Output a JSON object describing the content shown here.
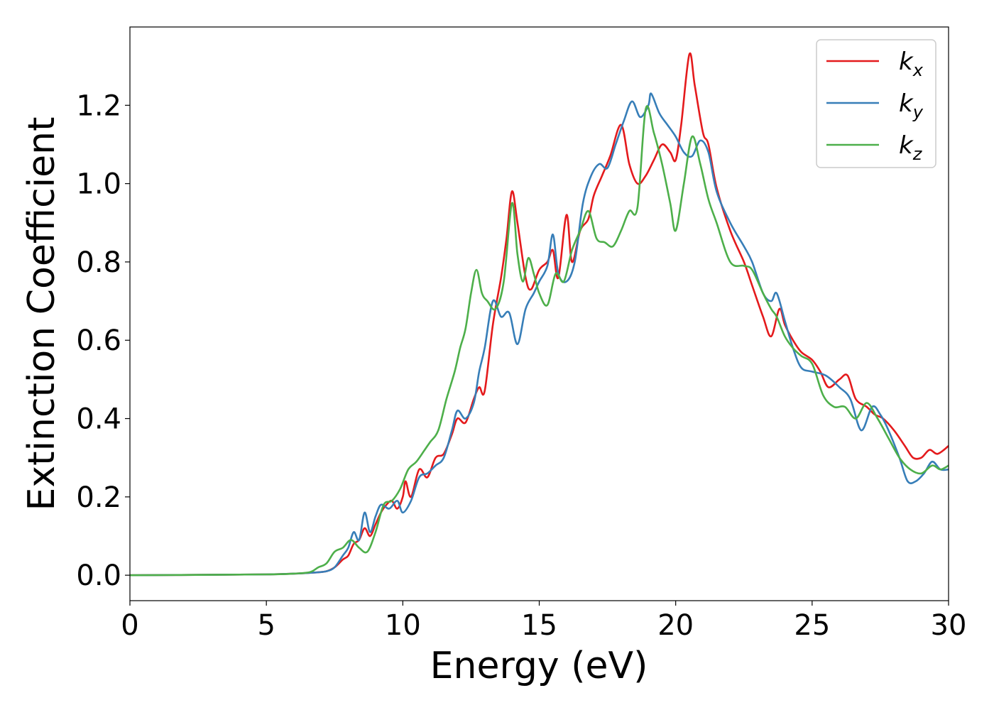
{
  "chart_data": {
    "type": "line",
    "title": "",
    "xlabel": "Energy (eV)",
    "ylabel": "Extinction Coefficient",
    "xlim": [
      0,
      30
    ],
    "ylim": [
      -0.065,
      1.4
    ],
    "xticks": [
      "0",
      "5",
      "10",
      "15",
      "20",
      "25",
      "30"
    ],
    "yticks": [
      "0.0",
      "0.2",
      "0.4",
      "0.6",
      "0.8",
      "1.0",
      "1.2"
    ],
    "grid": false,
    "legend_position": "top-right",
    "series": [
      {
        "name": "k",
        "name_sub": "x",
        "color": "#e41a1c",
        "points": [
          [
            0,
            0
          ],
          [
            3,
            0.001
          ],
          [
            5,
            0.002
          ],
          [
            6,
            0.004
          ],
          [
            6.8,
            0.007
          ],
          [
            7.2,
            0.01
          ],
          [
            7.5,
            0.02
          ],
          [
            7.8,
            0.04
          ],
          [
            8,
            0.05
          ],
          [
            8.2,
            0.08
          ],
          [
            8.4,
            0.09
          ],
          [
            8.6,
            0.12
          ],
          [
            8.8,
            0.1
          ],
          [
            9,
            0.13
          ],
          [
            9.2,
            0.16
          ],
          [
            9.4,
            0.18
          ],
          [
            9.6,
            0.19
          ],
          [
            9.8,
            0.17
          ],
          [
            10,
            0.2
          ],
          [
            10.1,
            0.24
          ],
          [
            10.3,
            0.2
          ],
          [
            10.6,
            0.27
          ],
          [
            10.9,
            0.25
          ],
          [
            11.2,
            0.3
          ],
          [
            11.5,
            0.31
          ],
          [
            11.8,
            0.36
          ],
          [
            12,
            0.4
          ],
          [
            12.3,
            0.39
          ],
          [
            12.6,
            0.45
          ],
          [
            12.8,
            0.48
          ],
          [
            13,
            0.47
          ],
          [
            13.3,
            0.64
          ],
          [
            13.6,
            0.76
          ],
          [
            13.8,
            0.86
          ],
          [
            14,
            0.98
          ],
          [
            14.2,
            0.9
          ],
          [
            14.5,
            0.76
          ],
          [
            14.7,
            0.73
          ],
          [
            15,
            0.78
          ],
          [
            15.3,
            0.8
          ],
          [
            15.5,
            0.83
          ],
          [
            15.7,
            0.76
          ],
          [
            16,
            0.92
          ],
          [
            16.2,
            0.8
          ],
          [
            16.5,
            0.88
          ],
          [
            16.8,
            0.91
          ],
          [
            17,
            0.97
          ],
          [
            17.3,
            1.02
          ],
          [
            17.6,
            1.07
          ],
          [
            18,
            1.15
          ],
          [
            18.3,
            1.05
          ],
          [
            18.6,
            1.0
          ],
          [
            18.9,
            1.02
          ],
          [
            19.2,
            1.06
          ],
          [
            19.5,
            1.1
          ],
          [
            19.8,
            1.08
          ],
          [
            20,
            1.06
          ],
          [
            20.2,
            1.15
          ],
          [
            20.5,
            1.33
          ],
          [
            20.7,
            1.25
          ],
          [
            21,
            1.13
          ],
          [
            21.2,
            1.1
          ],
          [
            21.5,
            0.99
          ],
          [
            22,
            0.88
          ],
          [
            22.5,
            0.8
          ],
          [
            22.8,
            0.74
          ],
          [
            23.2,
            0.66
          ],
          [
            23.5,
            0.61
          ],
          [
            23.8,
            0.68
          ],
          [
            24,
            0.64
          ],
          [
            24.3,
            0.6
          ],
          [
            24.6,
            0.57
          ],
          [
            25,
            0.55
          ],
          [
            25.3,
            0.52
          ],
          [
            25.6,
            0.48
          ],
          [
            26,
            0.5
          ],
          [
            26.3,
            0.51
          ],
          [
            26.6,
            0.45
          ],
          [
            27,
            0.43
          ],
          [
            27.3,
            0.41
          ],
          [
            27.6,
            0.4
          ],
          [
            28,
            0.37
          ],
          [
            28.4,
            0.33
          ],
          [
            28.7,
            0.3
          ],
          [
            29,
            0.3
          ],
          [
            29.3,
            0.32
          ],
          [
            29.6,
            0.31
          ],
          [
            30,
            0.33
          ]
        ]
      },
      {
        "name": "k",
        "name_sub": "y",
        "color": "#377eb8",
        "points": [
          [
            0,
            0
          ],
          [
            3,
            0.001
          ],
          [
            5,
            0.002
          ],
          [
            6,
            0.004
          ],
          [
            6.8,
            0.007
          ],
          [
            7.2,
            0.01
          ],
          [
            7.5,
            0.02
          ],
          [
            7.8,
            0.05
          ],
          [
            8,
            0.07
          ],
          [
            8.2,
            0.11
          ],
          [
            8.4,
            0.09
          ],
          [
            8.6,
            0.16
          ],
          [
            8.8,
            0.11
          ],
          [
            9,
            0.15
          ],
          [
            9.2,
            0.18
          ],
          [
            9.5,
            0.17
          ],
          [
            9.8,
            0.19
          ],
          [
            10,
            0.16
          ],
          [
            10.3,
            0.19
          ],
          [
            10.6,
            0.25
          ],
          [
            10.9,
            0.26
          ],
          [
            11.2,
            0.28
          ],
          [
            11.5,
            0.3
          ],
          [
            11.8,
            0.37
          ],
          [
            12,
            0.42
          ],
          [
            12.3,
            0.4
          ],
          [
            12.6,
            0.44
          ],
          [
            12.8,
            0.52
          ],
          [
            13,
            0.58
          ],
          [
            13.3,
            0.7
          ],
          [
            13.6,
            0.66
          ],
          [
            13.9,
            0.67
          ],
          [
            14.2,
            0.59
          ],
          [
            14.5,
            0.68
          ],
          [
            14.8,
            0.72
          ],
          [
            15,
            0.75
          ],
          [
            15.3,
            0.79
          ],
          [
            15.5,
            0.87
          ],
          [
            15.7,
            0.77
          ],
          [
            16,
            0.75
          ],
          [
            16.3,
            0.8
          ],
          [
            16.6,
            0.95
          ],
          [
            16.9,
            1.02
          ],
          [
            17.2,
            1.05
          ],
          [
            17.5,
            1.04
          ],
          [
            17.8,
            1.1
          ],
          [
            18.1,
            1.16
          ],
          [
            18.4,
            1.21
          ],
          [
            18.7,
            1.17
          ],
          [
            19,
            1.2
          ],
          [
            19.1,
            1.23
          ],
          [
            19.4,
            1.18
          ],
          [
            19.7,
            1.15
          ],
          [
            20,
            1.12
          ],
          [
            20.3,
            1.08
          ],
          [
            20.6,
            1.07
          ],
          [
            20.9,
            1.11
          ],
          [
            21.2,
            1.08
          ],
          [
            21.5,
            0.98
          ],
          [
            22,
            0.9
          ],
          [
            22.5,
            0.84
          ],
          [
            22.8,
            0.8
          ],
          [
            23.2,
            0.72
          ],
          [
            23.5,
            0.7
          ],
          [
            23.7,
            0.72
          ],
          [
            24,
            0.65
          ],
          [
            24.3,
            0.58
          ],
          [
            24.6,
            0.53
          ],
          [
            25,
            0.52
          ],
          [
            25.5,
            0.51
          ],
          [
            26,
            0.48
          ],
          [
            26.4,
            0.45
          ],
          [
            26.8,
            0.37
          ],
          [
            27.2,
            0.43
          ],
          [
            27.5,
            0.41
          ],
          [
            27.8,
            0.37
          ],
          [
            28.2,
            0.3
          ],
          [
            28.5,
            0.24
          ],
          [
            28.8,
            0.24
          ],
          [
            29.1,
            0.26
          ],
          [
            29.4,
            0.29
          ],
          [
            29.7,
            0.27
          ],
          [
            30,
            0.27
          ]
        ]
      },
      {
        "name": "k",
        "name_sub": "z",
        "color": "#4daf4a",
        "points": [
          [
            0,
            0
          ],
          [
            3,
            0.001
          ],
          [
            5,
            0.002
          ],
          [
            6,
            0.004
          ],
          [
            6.6,
            0.008
          ],
          [
            6.9,
            0.02
          ],
          [
            7.2,
            0.03
          ],
          [
            7.5,
            0.06
          ],
          [
            7.8,
            0.07
          ],
          [
            8.1,
            0.09
          ],
          [
            8.4,
            0.07
          ],
          [
            8.7,
            0.06
          ],
          [
            9,
            0.11
          ],
          [
            9.3,
            0.18
          ],
          [
            9.6,
            0.19
          ],
          [
            9.9,
            0.22
          ],
          [
            10.2,
            0.27
          ],
          [
            10.5,
            0.29
          ],
          [
            10.8,
            0.32
          ],
          [
            11,
            0.34
          ],
          [
            11.3,
            0.37
          ],
          [
            11.6,
            0.45
          ],
          [
            11.9,
            0.52
          ],
          [
            12.1,
            0.58
          ],
          [
            12.3,
            0.63
          ],
          [
            12.5,
            0.72
          ],
          [
            12.7,
            0.78
          ],
          [
            12.9,
            0.72
          ],
          [
            13.1,
            0.7
          ],
          [
            13.4,
            0.68
          ],
          [
            13.7,
            0.75
          ],
          [
            14,
            0.95
          ],
          [
            14.2,
            0.82
          ],
          [
            14.4,
            0.75
          ],
          [
            14.6,
            0.81
          ],
          [
            14.8,
            0.77
          ],
          [
            15,
            0.72
          ],
          [
            15.3,
            0.69
          ],
          [
            15.6,
            0.77
          ],
          [
            15.9,
            0.75
          ],
          [
            16.2,
            0.83
          ],
          [
            16.5,
            0.88
          ],
          [
            16.8,
            0.93
          ],
          [
            17.1,
            0.86
          ],
          [
            17.4,
            0.85
          ],
          [
            17.7,
            0.84
          ],
          [
            18,
            0.88
          ],
          [
            18.3,
            0.93
          ],
          [
            18.6,
            0.94
          ],
          [
            18.9,
            1.19
          ],
          [
            19.2,
            1.13
          ],
          [
            19.5,
            1.05
          ],
          [
            19.8,
            0.95
          ],
          [
            20,
            0.88
          ],
          [
            20.3,
            1.0
          ],
          [
            20.6,
            1.12
          ],
          [
            20.9,
            1.05
          ],
          [
            21.2,
            0.96
          ],
          [
            21.5,
            0.9
          ],
          [
            22,
            0.8
          ],
          [
            22.5,
            0.79
          ],
          [
            22.8,
            0.78
          ],
          [
            23.2,
            0.72
          ],
          [
            23.5,
            0.68
          ],
          [
            23.7,
            0.66
          ],
          [
            24,
            0.61
          ],
          [
            24.3,
            0.58
          ],
          [
            24.6,
            0.56
          ],
          [
            25,
            0.54
          ],
          [
            25.4,
            0.46
          ],
          [
            25.8,
            0.43
          ],
          [
            26.2,
            0.43
          ],
          [
            26.6,
            0.4
          ],
          [
            27,
            0.44
          ],
          [
            27.4,
            0.4
          ],
          [
            27.8,
            0.35
          ],
          [
            28.2,
            0.3
          ],
          [
            28.6,
            0.27
          ],
          [
            29,
            0.26
          ],
          [
            29.4,
            0.28
          ],
          [
            29.7,
            0.27
          ],
          [
            30,
            0.28
          ]
        ]
      }
    ]
  }
}
